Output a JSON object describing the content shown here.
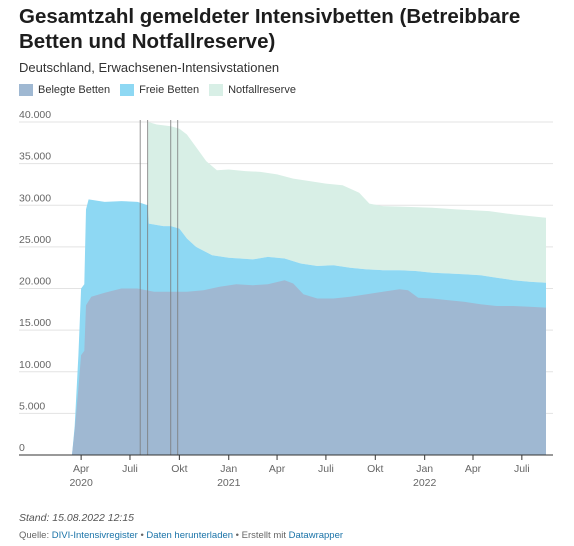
{
  "chart_data": {
    "type": "area",
    "stacked": true,
    "title": "Gesamtzahl gemeldeter Intensivbetten (Betreibbare Betten und Notfallreserve)",
    "subtitle": "Deutschland, Erwachsenen-Intensivstationen",
    "ylim": [
      0,
      40000
    ],
    "y_ticks": [
      {
        "value": 0,
        "label": "0"
      },
      {
        "value": 5000,
        "label": "5.000"
      },
      {
        "value": 10000,
        "label": "10.000"
      },
      {
        "value": 15000,
        "label": "15.000"
      },
      {
        "value": 20000,
        "label": "20.000"
      },
      {
        "value": 25000,
        "label": "25.000"
      },
      {
        "value": 30000,
        "label": "30.000"
      },
      {
        "value": 35000,
        "label": "35.000"
      },
      {
        "value": 40000,
        "label": "40.000"
      }
    ],
    "x_start": "2020-03-15",
    "x_end": "2022-08-15",
    "x_ticks": [
      {
        "date": "2020-04-01",
        "label": "Apr",
        "year": "2020"
      },
      {
        "date": "2020-07-01",
        "label": "Juli",
        "year": ""
      },
      {
        "date": "2020-10-01",
        "label": "Okt",
        "year": ""
      },
      {
        "date": "2021-01-01",
        "label": "Jan",
        "year": "2021"
      },
      {
        "date": "2021-04-01",
        "label": "Apr",
        "year": ""
      },
      {
        "date": "2021-07-01",
        "label": "Juli",
        "year": ""
      },
      {
        "date": "2021-10-01",
        "label": "Okt",
        "year": ""
      },
      {
        "date": "2022-01-01",
        "label": "Jan",
        "year": "2022"
      },
      {
        "date": "2022-04-01",
        "label": "Apr",
        "year": ""
      },
      {
        "date": "2022-07-01",
        "label": "Juli",
        "year": ""
      }
    ],
    "reference_lines": [
      "2020-07-20",
      "2020-08-03",
      "2020-09-15",
      "2020-09-28"
    ],
    "legend": [
      {
        "name": "Belegte Betten",
        "color": "#9fb8d2"
      },
      {
        "name": "Freie Betten",
        "color": "#8ed8f3"
      },
      {
        "name": "Notfallreserve",
        "color": "#d8efe6"
      }
    ],
    "series": [
      {
        "name": "Belegte Betten",
        "color": "#9fb8d2",
        "points": [
          [
            "2020-03-15",
            0
          ],
          [
            "2020-03-20",
            3000
          ],
          [
            "2020-03-27",
            8000
          ],
          [
            "2020-04-01",
            12000
          ],
          [
            "2020-04-07",
            12500
          ],
          [
            "2020-04-10",
            18000
          ],
          [
            "2020-04-20",
            19000
          ],
          [
            "2020-05-15",
            19500
          ],
          [
            "2020-06-15",
            20000
          ],
          [
            "2020-07-15",
            20000
          ],
          [
            "2020-08-15",
            19600
          ],
          [
            "2020-09-15",
            19600
          ],
          [
            "2020-10-15",
            19600
          ],
          [
            "2020-11-15",
            19800
          ],
          [
            "2020-12-15",
            20200
          ],
          [
            "2021-01-15",
            20500
          ],
          [
            "2021-02-15",
            20400
          ],
          [
            "2021-03-15",
            20500
          ],
          [
            "2021-04-15",
            21000
          ],
          [
            "2021-05-01",
            20600
          ],
          [
            "2021-05-20",
            19300
          ],
          [
            "2021-06-15",
            18800
          ],
          [
            "2021-07-15",
            18800
          ],
          [
            "2021-08-15",
            19000
          ],
          [
            "2021-09-15",
            19300
          ],
          [
            "2021-10-15",
            19600
          ],
          [
            "2021-11-15",
            19900
          ],
          [
            "2021-12-01",
            19800
          ],
          [
            "2021-12-20",
            18900
          ],
          [
            "2022-01-15",
            18800
          ],
          [
            "2022-02-15",
            18600
          ],
          [
            "2022-03-15",
            18400
          ],
          [
            "2022-04-15",
            18100
          ],
          [
            "2022-05-15",
            17900
          ],
          [
            "2022-06-15",
            17900
          ],
          [
            "2022-07-15",
            17800
          ],
          [
            "2022-08-15",
            17700
          ]
        ]
      },
      {
        "name": "Freie Betten",
        "color": "#8ed8f3",
        "points": [
          [
            "2020-03-15",
            0
          ],
          [
            "2020-03-20",
            3500
          ],
          [
            "2020-03-27",
            12000
          ],
          [
            "2020-04-01",
            20000
          ],
          [
            "2020-04-07",
            20500
          ],
          [
            "2020-04-10",
            29500
          ],
          [
            "2020-04-15",
            30700
          ],
          [
            "2020-05-15",
            30400
          ],
          [
            "2020-06-15",
            30500
          ],
          [
            "2020-07-15",
            30400
          ],
          [
            "2020-08-03",
            30000
          ],
          [
            "2020-08-05",
            27800
          ],
          [
            "2020-09-01",
            27500
          ],
          [
            "2020-09-15",
            27500
          ],
          [
            "2020-10-01",
            27200
          ],
          [
            "2020-10-15",
            26000
          ],
          [
            "2020-11-01",
            25000
          ],
          [
            "2020-12-01",
            24000
          ],
          [
            "2021-01-01",
            23700
          ],
          [
            "2021-02-15",
            23500
          ],
          [
            "2021-03-15",
            23800
          ],
          [
            "2021-04-15",
            23600
          ],
          [
            "2021-05-15",
            23000
          ],
          [
            "2021-06-15",
            22700
          ],
          [
            "2021-07-15",
            22800
          ],
          [
            "2021-08-15",
            22500
          ],
          [
            "2021-09-15",
            22300
          ],
          [
            "2021-10-15",
            22200
          ],
          [
            "2021-11-15",
            22200
          ],
          [
            "2021-12-15",
            22100
          ],
          [
            "2022-01-15",
            21900
          ],
          [
            "2022-02-15",
            21800
          ],
          [
            "2022-03-15",
            21700
          ],
          [
            "2022-04-15",
            21600
          ],
          [
            "2022-05-15",
            21300
          ],
          [
            "2022-06-15",
            21000
          ],
          [
            "2022-07-15",
            20800
          ],
          [
            "2022-08-15",
            20700
          ]
        ]
      },
      {
        "name": "Notfallreserve",
        "color": "#d8efe6",
        "points": [
          [
            "2020-08-03",
            30000
          ],
          [
            "2020-08-04",
            40000
          ],
          [
            "2020-08-20",
            39700
          ],
          [
            "2020-09-15",
            39500
          ],
          [
            "2020-10-01",
            39200
          ],
          [
            "2020-10-15",
            38500
          ],
          [
            "2020-11-01",
            37000
          ],
          [
            "2020-11-20",
            35300
          ],
          [
            "2020-12-10",
            34200
          ],
          [
            "2021-01-01",
            34300
          ],
          [
            "2021-02-01",
            34100
          ],
          [
            "2021-03-01",
            34000
          ],
          [
            "2021-04-01",
            33700
          ],
          [
            "2021-05-01",
            33200
          ],
          [
            "2021-06-01",
            32900
          ],
          [
            "2021-07-01",
            32600
          ],
          [
            "2021-08-01",
            32400
          ],
          [
            "2021-09-01",
            31500
          ],
          [
            "2021-09-20",
            30200
          ],
          [
            "2021-10-15",
            29900
          ],
          [
            "2021-12-01",
            29800
          ],
          [
            "2022-01-15",
            29700
          ],
          [
            "2022-03-01",
            29500
          ],
          [
            "2022-05-01",
            29300
          ],
          [
            "2022-06-15",
            28900
          ],
          [
            "2022-08-15",
            28500
          ]
        ]
      }
    ]
  },
  "meta": {
    "stand": "Stand: 15.08.2022 12:15",
    "source_prefix": "Quelle: ",
    "source_link": "DIVI-Intensivregister",
    "sep1": " • ",
    "download_link": "Daten herunterladen",
    "sep2": " • Erstellt mit ",
    "tool_link": "Datawrapper"
  }
}
